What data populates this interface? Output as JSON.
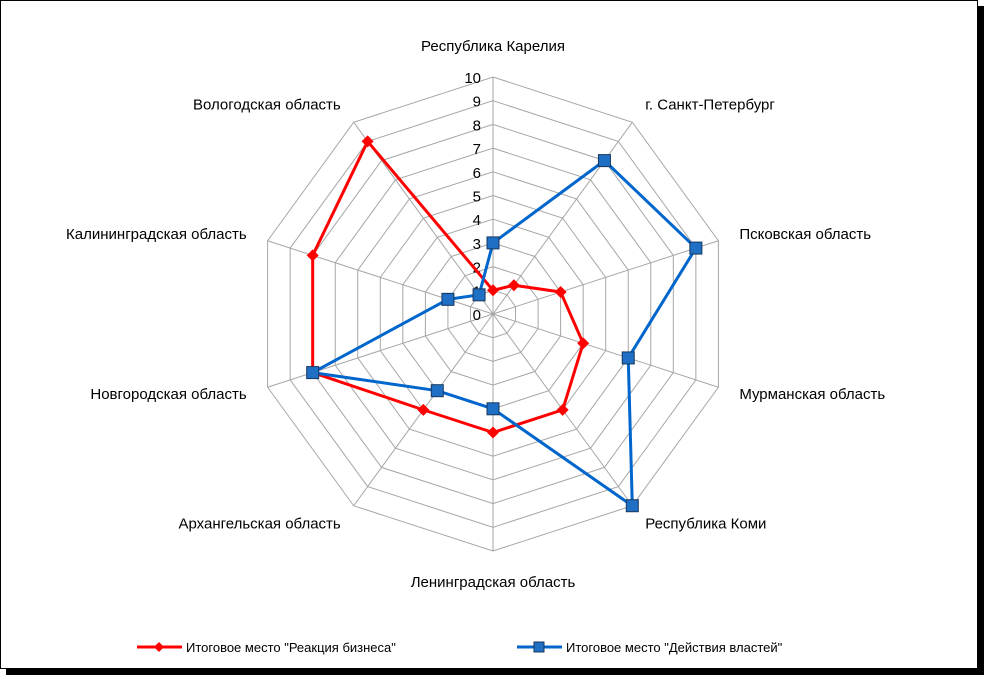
{
  "chart_data": {
    "type": "radar",
    "title": "",
    "categories": [
      "Республика Карелия",
      "г. Санкт-Петербург",
      "Псковская область",
      "Мурманская область",
      "Республика Коми",
      "Ленинградская область",
      "Архангельская область",
      "Новгородская область",
      "Калининградская область",
      "Вологодская область"
    ],
    "r_ticks": [
      "0",
      "1",
      "2",
      "3",
      "4",
      "5",
      "6",
      "7",
      "8",
      "9",
      "10"
    ],
    "rlim": [
      0,
      10
    ],
    "legend_position": "bottom",
    "series": [
      {
        "name": "Итоговое место \"Реакция бизнеса\"",
        "color": "#ff0000",
        "marker": "diamond",
        "values": [
          1,
          1.5,
          3,
          4,
          5,
          5,
          5,
          8,
          8,
          9
        ]
      },
      {
        "name": "Итоговое место \"Действия властей\"",
        "color": "#0066cc",
        "marker": "square",
        "values": [
          3,
          8,
          9,
          6,
          10,
          4,
          4,
          8,
          2,
          1
        ]
      }
    ]
  }
}
